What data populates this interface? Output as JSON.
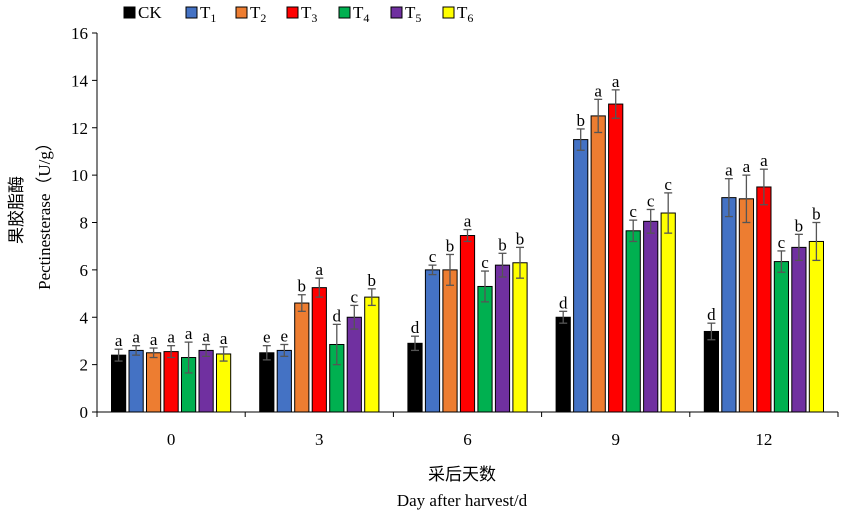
{
  "chart_data": {
    "type": "bar",
    "x_title_cn": "采后天数",
    "x_title_en": "Day after harvest/d",
    "y_title_cn": "果胶脂酶",
    "y_title_en": "Pectinesterase（U/g）",
    "categories": [
      "0",
      "3",
      "6",
      "9",
      "12"
    ],
    "ylim": [
      0,
      16
    ],
    "yticks": [
      "0",
      "2",
      "4",
      "6",
      "8",
      "10",
      "12",
      "14",
      "16"
    ],
    "grid": false,
    "legend_position": "top",
    "series": [
      {
        "name": "CK",
        "base": "CK",
        "sub": "",
        "color": "#000000",
        "values": [
          2.4,
          2.5,
          2.9,
          4.0,
          3.4
        ],
        "errors": [
          0.25,
          0.3,
          0.3,
          0.25,
          0.35
        ],
        "labels": [
          "a",
          "e",
          "d",
          "d",
          "d"
        ]
      },
      {
        "name": "T1",
        "base": "T",
        "sub": "1",
        "color": "#4472C4",
        "values": [
          2.6,
          2.6,
          6.0,
          11.5,
          9.05
        ],
        "errors": [
          0.2,
          0.25,
          0.2,
          0.45,
          0.8
        ],
        "labels": [
          "a",
          "e",
          "c",
          "b",
          "a"
        ]
      },
      {
        "name": "T2",
        "base": "T",
        "sub": "2",
        "color": "#ED7D31",
        "values": [
          2.5,
          4.6,
          6.0,
          12.5,
          9.0
        ],
        "errors": [
          0.2,
          0.35,
          0.65,
          0.7,
          1.0
        ],
        "labels": [
          "a",
          "b",
          "b",
          "a",
          "a"
        ]
      },
      {
        "name": "T3",
        "base": "T",
        "sub": "3",
        "color": "#FF0000",
        "values": [
          2.55,
          5.25,
          7.45,
          13.0,
          9.5
        ],
        "errors": [
          0.25,
          0.4,
          0.25,
          0.6,
          0.75
        ],
        "labels": [
          "a",
          "a",
          "a",
          "a",
          "a"
        ]
      },
      {
        "name": "T4",
        "base": "T",
        "sub": "4",
        "color": "#00B050",
        "values": [
          2.3,
          2.85,
          5.3,
          7.65,
          6.35
        ],
        "errors": [
          0.65,
          0.85,
          0.65,
          0.45,
          0.45
        ],
        "labels": [
          "a",
          "d",
          "c",
          "c",
          "c"
        ]
      },
      {
        "name": "T5",
        "base": "T",
        "sub": "5",
        "color": "#7030A0",
        "values": [
          2.6,
          4.0,
          6.2,
          8.05,
          6.95
        ],
        "errors": [
          0.25,
          0.5,
          0.5,
          0.5,
          0.55
        ],
        "labels": [
          "a",
          "c",
          "b",
          "c",
          "b"
        ]
      },
      {
        "name": "T6",
        "base": "T",
        "sub": "6",
        "color": "#FFFF00",
        "values": [
          2.45,
          4.85,
          6.3,
          8.4,
          7.2
        ],
        "errors": [
          0.3,
          0.35,
          0.65,
          0.85,
          0.8
        ],
        "labels": [
          "a",
          "b",
          "b",
          "c",
          "b"
        ]
      }
    ]
  }
}
